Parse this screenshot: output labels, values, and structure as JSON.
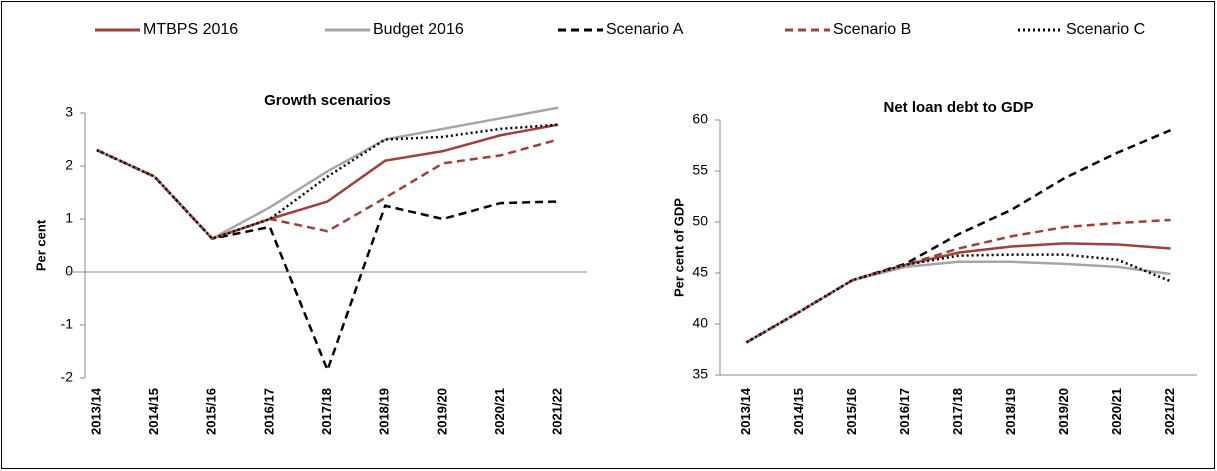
{
  "chart_data": [
    {
      "type": "line",
      "title": "Growth scenarios",
      "y_label": "Per cent",
      "categories": [
        "2013/14",
        "2014/15",
        "2015/16",
        "2016/17",
        "2017/18",
        "2018/19",
        "2019/20",
        "2020/21",
        "2021/22"
      ],
      "ylim": [
        -2,
        3
      ],
      "yticks": [
        -2,
        -1,
        0,
        1,
        2,
        3
      ],
      "grid": false,
      "series": [
        {
          "name": "MTBPS 2016",
          "color": "#a0403a",
          "dash": "solid",
          "values": [
            2.3,
            1.8,
            0.63,
            1.0,
            1.33,
            2.1,
            2.28,
            2.58,
            2.78
          ]
        },
        {
          "name": "Budget 2016",
          "color": "#a6a6a6",
          "dash": "solid",
          "values": [
            2.3,
            1.8,
            0.63,
            1.22,
            1.9,
            2.5,
            2.7,
            2.9,
            3.1
          ]
        },
        {
          "name": "Scenario A",
          "color": "#000000",
          "dash": "dash",
          "values": [
            2.3,
            1.8,
            0.63,
            0.85,
            -1.85,
            1.25,
            1.0,
            1.3,
            1.33
          ]
        },
        {
          "name": "Scenario B",
          "color": "#a0403a",
          "dash": "dash",
          "values": [
            2.3,
            1.8,
            0.63,
            1.0,
            0.77,
            1.4,
            2.05,
            2.2,
            2.5
          ]
        },
        {
          "name": "Scenario C",
          "color": "#000000",
          "dash": "dot",
          "values": [
            2.3,
            1.8,
            0.63,
            1.0,
            1.8,
            2.5,
            2.55,
            2.7,
            2.78
          ]
        }
      ]
    },
    {
      "type": "line",
      "title": "Net loan debt to GDP",
      "y_label": "Per cent of GDP",
      "categories": [
        "2013/14",
        "2014/15",
        "2015/16",
        "2016/17",
        "2017/18",
        "2018/19",
        "2019/20",
        "2020/21",
        "2021/22"
      ],
      "ylim": [
        35,
        60
      ],
      "yticks": [
        35,
        40,
        45,
        50,
        55,
        60
      ],
      "grid": false,
      "series": [
        {
          "color": "#a0403a",
          "dash": "solid",
          "values": [
            38.2,
            41.2,
            44.3,
            45.8,
            47.0,
            47.6,
            47.9,
            47.8,
            47.4
          ]
        },
        {
          "color": "#a6a6a6",
          "dash": "solid",
          "values": [
            38.2,
            41.2,
            44.3,
            45.6,
            46.1,
            46.1,
            45.9,
            45.6,
            44.9
          ]
        },
        {
          "color": "#000000",
          "dash": "dash",
          "values": [
            38.2,
            41.2,
            44.3,
            45.9,
            48.8,
            51.2,
            54.3,
            56.8,
            59.0
          ]
        },
        {
          "color": "#a0403a",
          "dash": "dash",
          "values": [
            38.2,
            41.2,
            44.3,
            45.8,
            47.4,
            48.6,
            49.5,
            49.9,
            50.2
          ]
        },
        {
          "color": "#000000",
          "dash": "dot",
          "values": [
            38.2,
            41.2,
            44.3,
            45.8,
            46.7,
            46.8,
            46.8,
            46.3,
            44.2
          ]
        }
      ]
    }
  ]
}
